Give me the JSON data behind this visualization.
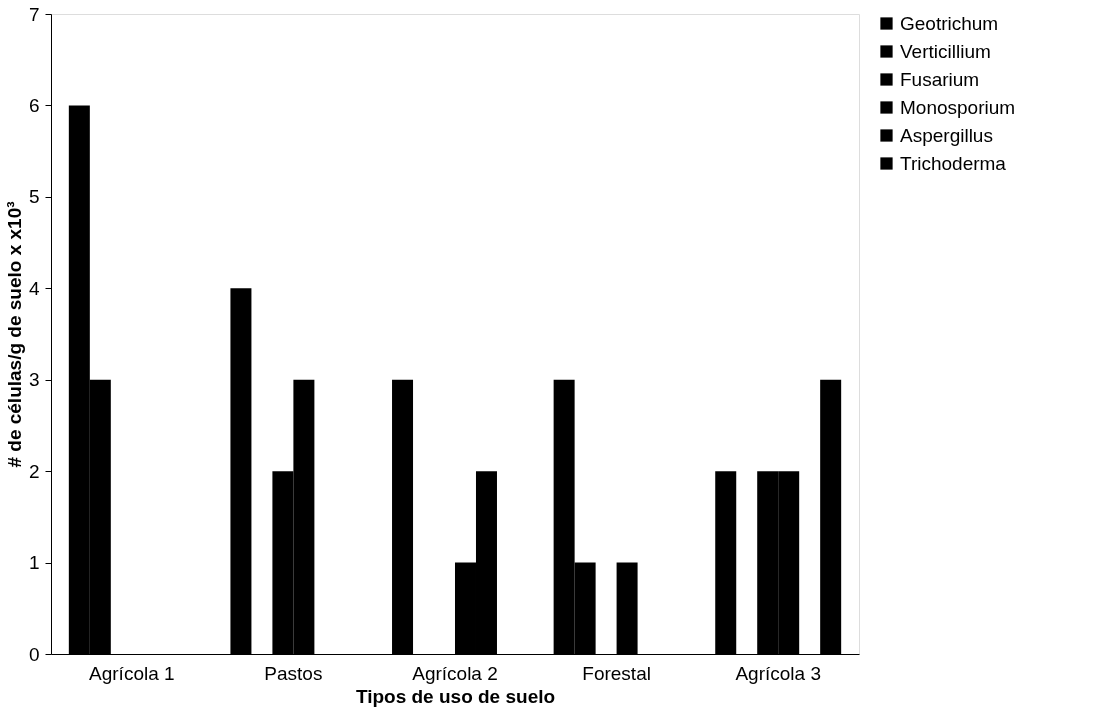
{
  "chart_data": {
    "type": "bar",
    "xlabel": "Tipos de uso de suelo",
    "ylabel": "# de células/g de suelo x x10³",
    "categories": [
      "Agrícola 1",
      "Pastos",
      "Agrícola 2",
      "Forestal",
      "Agrícola 3"
    ],
    "series": [
      {
        "name": "Geotrichum",
        "color": "#000000",
        "values": [
          6,
          4,
          3,
          3,
          2
        ]
      },
      {
        "name": "Verticillium",
        "color": "#000000",
        "values": [
          3,
          0,
          0,
          1,
          0
        ]
      },
      {
        "name": "Fusarium",
        "color": "#000000",
        "values": [
          0,
          2,
          0,
          0,
          2
        ]
      },
      {
        "name": "Monosporium",
        "color": "#000000",
        "values": [
          0,
          3,
          1,
          1,
          2
        ]
      },
      {
        "name": "Aspergillus",
        "color": "#000000",
        "values": [
          0,
          0,
          2,
          0,
          0
        ]
      },
      {
        "name": "Trichoderma",
        "color": "#000000",
        "values": [
          0,
          0,
          0,
          0,
          3
        ]
      }
    ],
    "ylim": [
      0,
      7
    ],
    "yticks": [
      0,
      1,
      2,
      3,
      4,
      5,
      6,
      7
    ],
    "grid": false,
    "legend": "right"
  }
}
